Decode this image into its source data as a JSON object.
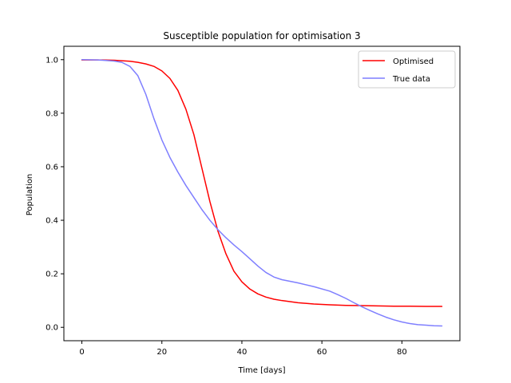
{
  "chart_data": {
    "type": "line",
    "title": "Susceptible population for optimisation 3",
    "xlabel": "Time [days]",
    "ylabel": "Population",
    "xlim": [
      -4.5,
      94.5
    ],
    "ylim": [
      -0.05,
      1.05
    ],
    "xticks": [
      0,
      20,
      40,
      60,
      80
    ],
    "yticks": [
      0.0,
      0.2,
      0.4,
      0.6,
      0.8,
      1.0
    ],
    "xtick_labels": [
      "0",
      "20",
      "40",
      "60",
      "80"
    ],
    "ytick_labels": [
      "0.0",
      "0.2",
      "0.4",
      "0.6",
      "0.8",
      "1.0"
    ],
    "grid": false,
    "legend_position": "top-right",
    "series": [
      {
        "name": "Optimised",
        "color": "#ff0000",
        "x": [
          0,
          4,
          8,
          12,
          14,
          16,
          18,
          20,
          22,
          24,
          26,
          28,
          30,
          32,
          34,
          36,
          38,
          40,
          42,
          44,
          46,
          48,
          50,
          54,
          58,
          62,
          66,
          70,
          74,
          78,
          82,
          86,
          90
        ],
        "y": [
          0.999,
          0.999,
          0.998,
          0.994,
          0.99,
          0.984,
          0.975,
          0.958,
          0.93,
          0.885,
          0.815,
          0.72,
          0.595,
          0.47,
          0.36,
          0.275,
          0.21,
          0.17,
          0.143,
          0.125,
          0.113,
          0.105,
          0.1,
          0.092,
          0.087,
          0.084,
          0.082,
          0.081,
          0.08,
          0.079,
          0.079,
          0.078,
          0.078
        ]
      },
      {
        "name": "True data",
        "color": "#7f7fff",
        "x": [
          0,
          4,
          8,
          10,
          12,
          14,
          16,
          18,
          20,
          22,
          24,
          26,
          28,
          30,
          32,
          34,
          36,
          38,
          40,
          42,
          44,
          46,
          48,
          50,
          54,
          58,
          62,
          64,
          66,
          68,
          70,
          72,
          74,
          76,
          78,
          80,
          82,
          84,
          86,
          88,
          90
        ],
        "y": [
          1.0,
          0.999,
          0.995,
          0.99,
          0.975,
          0.94,
          0.87,
          0.78,
          0.7,
          0.635,
          0.58,
          0.53,
          0.485,
          0.44,
          0.4,
          0.365,
          0.335,
          0.308,
          0.283,
          0.256,
          0.229,
          0.205,
          0.188,
          0.178,
          0.166,
          0.152,
          0.135,
          0.122,
          0.108,
          0.092,
          0.077,
          0.063,
          0.05,
          0.038,
          0.028,
          0.02,
          0.014,
          0.01,
          0.008,
          0.006,
          0.005
        ]
      }
    ]
  }
}
